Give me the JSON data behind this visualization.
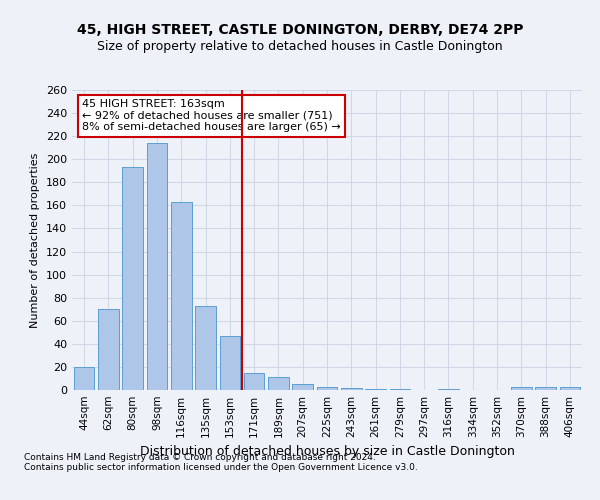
{
  "title1": "45, HIGH STREET, CASTLE DONINGTON, DERBY, DE74 2PP",
  "title2": "Size of property relative to detached houses in Castle Donington",
  "xlabel": "Distribution of detached houses by size in Castle Donington",
  "ylabel": "Number of detached properties",
  "footer1": "Contains HM Land Registry data © Crown copyright and database right 2024.",
  "footer2": "Contains public sector information licensed under the Open Government Licence v3.0.",
  "bar_labels": [
    "44sqm",
    "62sqm",
    "80sqm",
    "98sqm",
    "116sqm",
    "135sqm",
    "153sqm",
    "171sqm",
    "189sqm",
    "207sqm",
    "225sqm",
    "243sqm",
    "261sqm",
    "279sqm",
    "297sqm",
    "316sqm",
    "334sqm",
    "352sqm",
    "370sqm",
    "388sqm",
    "406sqm"
  ],
  "bar_values": [
    20,
    70,
    193,
    214,
    163,
    73,
    47,
    15,
    11,
    5,
    3,
    2,
    1,
    1,
    0,
    1,
    0,
    0,
    3,
    3,
    3
  ],
  "bar_color": "#aec6e8",
  "bar_edge_color": "#5a9fd4",
  "grid_color": "#d0d8e8",
  "background_color": "#eef2f8",
  "vline_x": 6.5,
  "vline_color": "#cc0000",
  "annotation_text": "45 HIGH STREET: 163sqm\n← 92% of detached houses are smaller (751)\n8% of semi-detached houses are larger (65) →",
  "annotation_box_color": "#ffffff",
  "annotation_box_edge": "#cc0000",
  "ylim": [
    0,
    260
  ],
  "yticks": [
    0,
    20,
    40,
    60,
    80,
    100,
    120,
    140,
    160,
    180,
    200,
    220,
    240,
    260
  ],
  "title1_fontsize": 10,
  "title2_fontsize": 9,
  "ylabel_fontsize": 8,
  "xlabel_fontsize": 9,
  "footer_fontsize": 6.5
}
